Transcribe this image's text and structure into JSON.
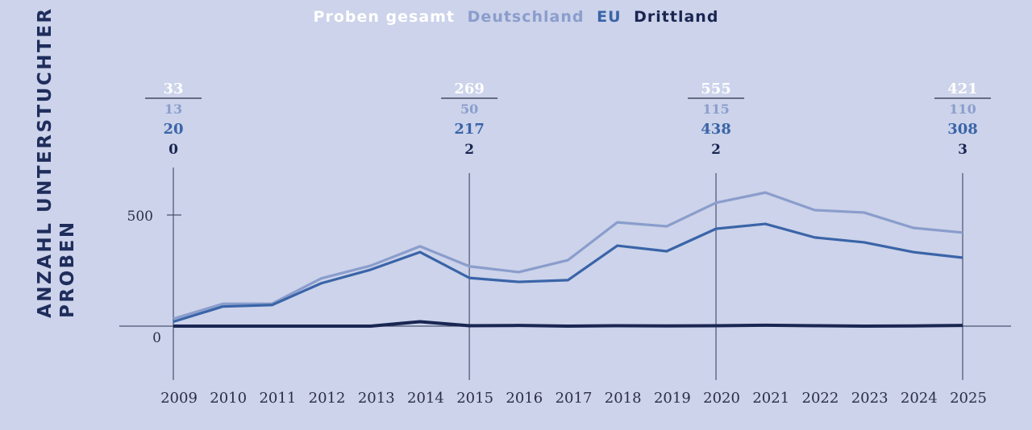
{
  "chart_data": {
    "type": "line",
    "title": "",
    "legend": {
      "placement": "top-center",
      "entries": [
        {
          "name": "Proben gesamt",
          "color": "#ffffff"
        },
        {
          "name": "Deutschland",
          "color": "#8a9dcc"
        },
        {
          "name": "EU",
          "color": "#3a64a8"
        },
        {
          "name": "Drittland",
          "color": "#1a2652"
        }
      ]
    },
    "ylabel_lines": [
      "ANZAHL UNTERSTUCHTER",
      "PROBEN"
    ],
    "xlabel": "",
    "x": [
      "2009",
      "2010",
      "2011",
      "2012",
      "2013",
      "2014",
      "2015",
      "2016",
      "2017",
      "2018",
      "2019",
      "2020",
      "2021",
      "2022",
      "2023",
      "2024",
      "2025"
    ],
    "yticks": [
      0,
      500
    ],
    "ylim": [
      -230,
      720
    ],
    "grid": false,
    "series": [
      {
        "name": "Proben gesamt",
        "color": "#8a9dcc",
        "values": [
          33,
          100,
          101,
          215,
          272,
          359,
          269,
          243,
          297,
          467,
          449,
          555,
          601,
          522,
          511,
          442,
          421
        ]
      },
      {
        "name": "EU",
        "color": "#3a64a8",
        "values": [
          20,
          88,
          95,
          193,
          254,
          333,
          217,
          199,
          207,
          362,
          337,
          438,
          460,
          399,
          377,
          333,
          308
        ]
      },
      {
        "name": "Drittland",
        "color": "#1a2652",
        "values": [
          0,
          0,
          0,
          0,
          0,
          20,
          2,
          3,
          0,
          2,
          1,
          2,
          4,
          2,
          0,
          1,
          3
        ]
      }
    ],
    "annotations": [
      {
        "year": "2009",
        "gesamt": "33",
        "deutschland": "13",
        "eu": "20",
        "drittland": "0"
      },
      {
        "year": "2015",
        "gesamt": "269",
        "deutschland": "50",
        "eu": "217",
        "drittland": "2"
      },
      {
        "year": "2020",
        "gesamt": "555",
        "deutschland": "115",
        "eu": "438",
        "drittland": "2"
      },
      {
        "year": "2025",
        "gesamt": "421",
        "deutschland": "110",
        "eu": "308",
        "drittland": "3"
      }
    ]
  }
}
